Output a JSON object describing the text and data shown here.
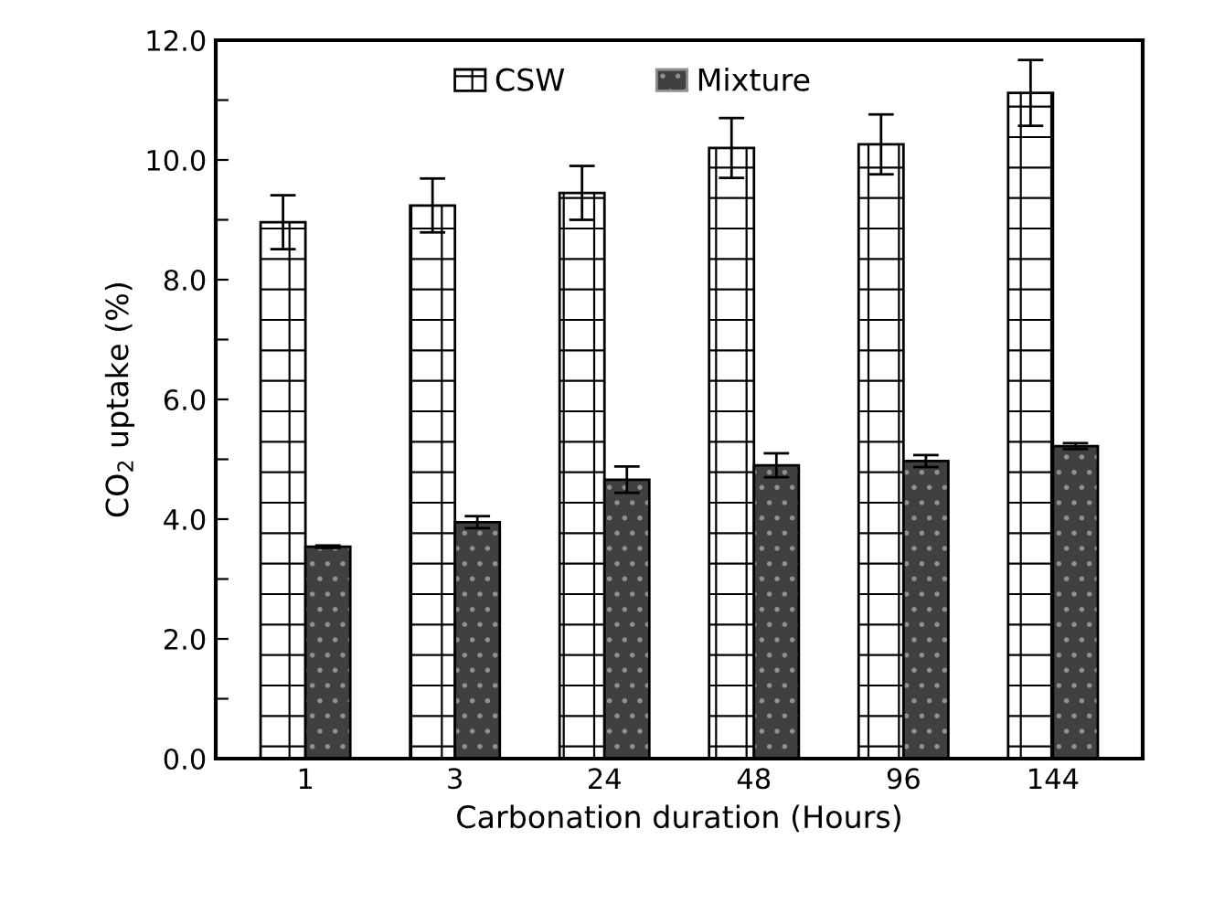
{
  "chart_data": {
    "type": "bar",
    "xlabel": "Carbonation duration (Hours)",
    "ylabel": "CO$_{2}$ uptake (%)",
    "categories": [
      "1",
      "3",
      "24",
      "48",
      "96",
      "144"
    ],
    "series": [
      {
        "name": "CSW",
        "color": "#ffffff",
        "values": [
          8.96,
          9.24,
          9.45,
          10.2,
          10.26,
          11.12
        ],
        "errors": [
          0.45,
          0.45,
          0.45,
          0.5,
          0.5,
          0.55
        ]
      },
      {
        "name": "Mixture",
        "color": "#404040",
        "values": [
          3.54,
          3.95,
          4.66,
          4.9,
          4.97,
          5.22
        ],
        "errors": [
          0.02,
          0.1,
          0.22,
          0.2,
          0.1,
          0.05
        ]
      }
    ],
    "ylim": [
      0,
      12
    ],
    "yticks": [
      {
        "value": 0,
        "label": "0.0"
      },
      {
        "value": 1,
        "label": null
      },
      {
        "value": 2,
        "label": "2.0"
      },
      {
        "value": 3,
        "label": null
      },
      {
        "value": 4,
        "label": "4.0"
      },
      {
        "value": 5,
        "label": null
      },
      {
        "value": 6,
        "label": "6.0"
      },
      {
        "value": 7,
        "label": null
      },
      {
        "value": 8,
        "label": "8.0"
      },
      {
        "value": 9,
        "label": null
      },
      {
        "value": 10,
        "label": "10.0"
      },
      {
        "value": 11,
        "label": null
      },
      {
        "value": 12,
        "label": "12.0"
      }
    ],
    "grid": false,
    "legend": "top"
  }
}
